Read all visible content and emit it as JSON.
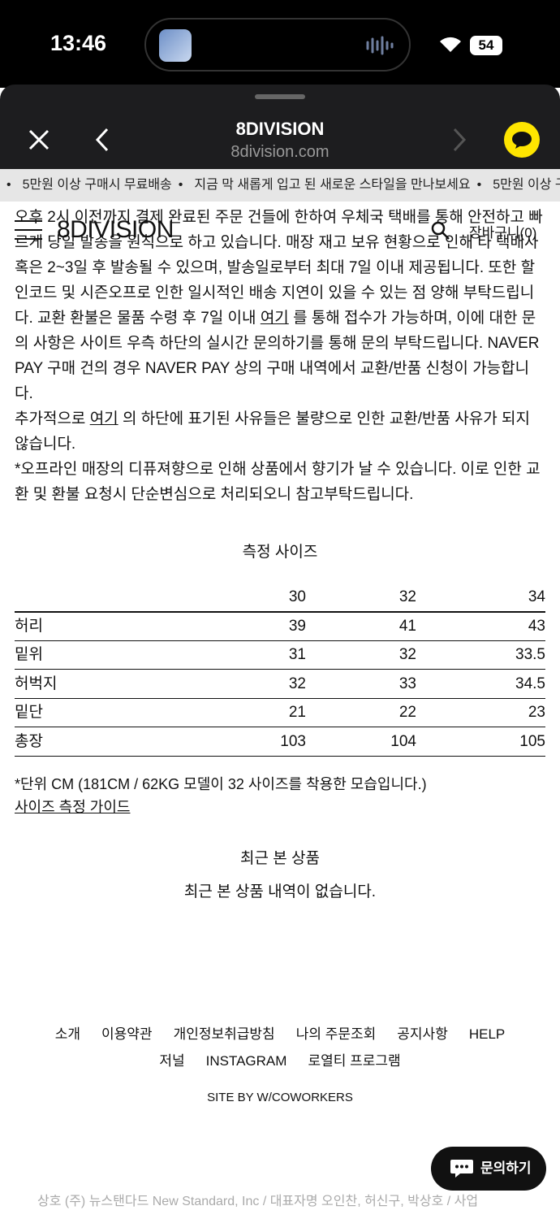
{
  "status_bar": {
    "time": "13:46",
    "battery": "54"
  },
  "browser": {
    "title": "8DIVISION",
    "url": "8division.com"
  },
  "marquee": [
    "5만원 이상 구매시 무료배송",
    "지금 막 새롭게 입고 된 새로운 스타일을 만나보세요"
  ],
  "site_header": {
    "logo": "8DIVISION",
    "cart": "장바구니(0)"
  },
  "notice": {
    "p1_before": "오후 2시 이전까지 결제 완료된 주문 건들에 한하여 우체국 택배를 통해 안전하고 빠르게 당일 발송을 원칙으로 하고 있습니다. 매장 재고 보유 현황으로 인해 타 택배사 혹은 2~3일 후 발송될 수 있으며, 발송일로부터 최대 7일 이내 제공됩니다. 또한 할인코드 및 시즌오프로 인한 일시적인 배송 지연이 있을 수 있는 점 양해 부탁드립니다. 교환 환불은 물품 수령 후 7일 이내",
    "p1_link": "여기",
    "p1_after": "를 통해 접수가 가능하며, 이에 대한 문의 사항은 사이트 우측 하단의 실시간 문의하기를 통해 문의 부탁드립니다. NAVER PAY 구매 건의 경우 NAVER PAY 상의 구매 내역에서 교환/반품 신청이 가능합니다.",
    "p2_before": "추가적으로",
    "p2_link": "여기",
    "p2_after": "의 하단에 표기된 사유들은 불량으로 인한 교환/반품 사유가 되지 않습니다.",
    "p3": "*오프라인 매장의 디퓨져향으로 인해 상품에서 향기가 날 수 있습니다. 이로 인한 교환 및 환불 요청시 단순변심으로 처리되오니 참고부탁드립니다."
  },
  "size_table": {
    "title": "측정 사이즈",
    "headers": [
      "30",
      "32",
      "34"
    ],
    "rows": [
      [
        "허리",
        39,
        41,
        43
      ],
      [
        "밑위",
        31,
        32,
        33.5
      ],
      [
        "허벅지",
        32,
        33,
        34.5
      ],
      [
        "밑단",
        21,
        22,
        23
      ],
      [
        "총장",
        103,
        104,
        105
      ]
    ],
    "note": "*단위 CM (181CM / 62KG 모델이 32 사이즈를 착용한 모습입니다.)",
    "guide_link": "사이즈 측정 가이드"
  },
  "recent": {
    "title": "최근 본 상품",
    "empty": "최근 본 상품 내역이 없습니다."
  },
  "footer": {
    "links": [
      [
        "소개",
        "이용약관",
        "개인정보취급방침",
        "나의 주문조회",
        "공지사항",
        "HELP"
      ],
      [
        "저널",
        "INSTAGRAM",
        "로열티 프로그램"
      ]
    ],
    "credit": "SITE BY W/COWORKERS",
    "company": "상호 (주) 뉴스탠다드 New Standard, Inc / 대표자명 오인찬, 허신구, 박상호 / 사업"
  },
  "chat_button": "문의하기"
}
